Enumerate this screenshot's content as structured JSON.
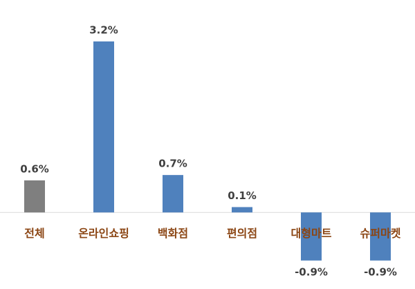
{
  "chart_data": {
    "type": "bar",
    "categories": [
      "전체",
      "온라인쇼핑",
      "백화점",
      "편의점",
      "대형마트",
      "슈퍼마켓"
    ],
    "values": [
      0.6,
      3.2,
      0.7,
      0.1,
      -0.9,
      -0.9
    ],
    "value_labels": [
      "0.6%",
      "3.2%",
      "0.7%",
      "0.1%",
      "-0.9%",
      "-0.9%"
    ],
    "colors": [
      "#7f7f7f",
      "#4f81bd",
      "#4f81bd",
      "#4f81bd",
      "#4f81bd",
      "#4f81bd"
    ],
    "ylim": [
      -1.2,
      3.6
    ]
  }
}
